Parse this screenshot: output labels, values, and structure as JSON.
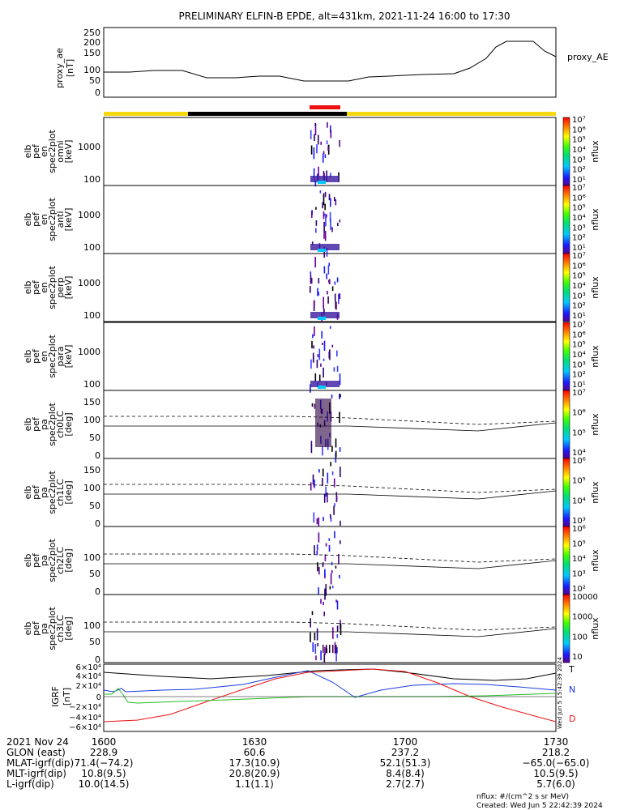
{
  "title": "PRELIMINARY ELFIN-B EPDE, alt=431km, 2021-11-24 16:00 to 17:30",
  "colors": {
    "yellow": "#f5d80f",
    "black": "#000000",
    "red": "#ee1111",
    "blue": "#1a3be0",
    "green": "#22bb22"
  },
  "proxy_ae": {
    "ylabel_lines": [
      "proxy_ae",
      "[nT]"
    ],
    "yticks": [
      "250",
      "200",
      "150",
      "100",
      "50",
      "0"
    ],
    "legend": "proxy_AE"
  },
  "panels": [
    {
      "ylabel": [
        "elb",
        "pef",
        "en",
        "spec2plot",
        "omni",
        "[keV]"
      ],
      "yticks": [
        "1000",
        "100"
      ],
      "cb_ticks": [
        "10⁷",
        "10⁶",
        "10⁵",
        "10⁴",
        "10³",
        "10²",
        "10¹"
      ],
      "cb_label": "nflux"
    },
    {
      "ylabel": [
        "elb",
        "pef",
        "en",
        "spec2plot",
        "anti",
        "[keV]"
      ],
      "yticks": [
        "1000",
        "100"
      ],
      "cb_ticks": [
        "10⁷",
        "10⁶",
        "10⁵",
        "10⁴",
        "10³",
        "10²",
        "10¹"
      ],
      "cb_label": "nflux"
    },
    {
      "ylabel": [
        "elb",
        "pef",
        "en",
        "spec2plot",
        "perp",
        "[keV]"
      ],
      "yticks": [
        "1000",
        "100"
      ],
      "cb_ticks": [
        "10⁷",
        "10⁶",
        "10⁵",
        "10⁴",
        "10³",
        "10²",
        "10¹"
      ],
      "cb_label": "nflux"
    },
    {
      "ylabel": [
        "elb",
        "pef",
        "en",
        "spec2plot",
        "para",
        "[keV]"
      ],
      "yticks": [
        "1000",
        "100"
      ],
      "cb_ticks": [
        "10⁷",
        "10⁶",
        "10⁵",
        "10⁴",
        "10³",
        "10²",
        "10¹"
      ],
      "cb_label": "nflux"
    },
    {
      "ylabel": [
        "elb",
        "pef",
        "pa",
        "spec2plot",
        "ch0LC",
        "[deg]"
      ],
      "yticks": [
        "150",
        "100",
        "50",
        "0"
      ],
      "cb_ticks": [
        "10⁷",
        "10⁶",
        "10⁵",
        "10⁴"
      ],
      "cb_label": "nflux"
    },
    {
      "ylabel": [
        "elb",
        "pef",
        "pa",
        "spec2plot",
        "ch1LC",
        "[deg]"
      ],
      "yticks": [
        "150",
        "100",
        "50",
        "0"
      ],
      "cb_ticks": [
        "10⁶",
        "10⁵",
        "10⁴",
        "10³"
      ],
      "cb_label": "nflux"
    },
    {
      "ylabel": [
        "elb",
        "pef",
        "pa",
        "spec2plot",
        "ch2LC",
        "[deg]"
      ],
      "yticks": [
        "100",
        "50",
        "0"
      ],
      "cb_ticks": [
        "10⁶",
        "10⁵",
        "10⁴",
        "10³",
        "10²"
      ],
      "cb_label": "nflux"
    },
    {
      "ylabel": [
        "elb",
        "pef",
        "pa",
        "spec2plot",
        "ch3LC",
        "[deg]"
      ],
      "yticks": [
        "100",
        "50",
        "0"
      ],
      "cb_ticks": [
        "10000",
        "1000",
        "100",
        "10"
      ],
      "cb_label": "nflux"
    }
  ],
  "igrf": {
    "ylabel_lines": [
      "IGRF",
      "[nT]"
    ],
    "yticks": [
      "6×10⁴",
      "4×10⁴",
      "2×10⁴",
      "0",
      "−2×10⁴",
      "−4×10⁴",
      "−6×10⁴"
    ],
    "legend": [
      "T",
      "N",
      "D"
    ],
    "side_note": "Wed Jun  5 15:42:39 2024"
  },
  "footer": {
    "row_labels": [
      "2021 Nov 24",
      "GLON (east)",
      "MLAT-igrf(dip)",
      "MLT-igrf(dip)",
      "L-igrf(dip)"
    ],
    "columns": [
      [
        "1600",
        "228.9",
        "71.4(−74.2)",
        "10.8(9.5)",
        "10.0(14.5)"
      ],
      [
        "1630",
        "60.6",
        "17.3(10.9)",
        "20.8(20.9)",
        "1.1(1.1)"
      ],
      [
        "1700",
        "237.2",
        "52.1(51.3)",
        "8.4(8.4)",
        "2.7(2.7)"
      ],
      [
        "1730",
        "218.2",
        "−65.0(−65.0)",
        "10.5(9.5)",
        "5.7(6.0)"
      ]
    ],
    "note_units": "nflux: #/(cm^2 s sr MeV)",
    "note_created": "Created: Wed Jun  5 22:42:39 2024"
  }
}
